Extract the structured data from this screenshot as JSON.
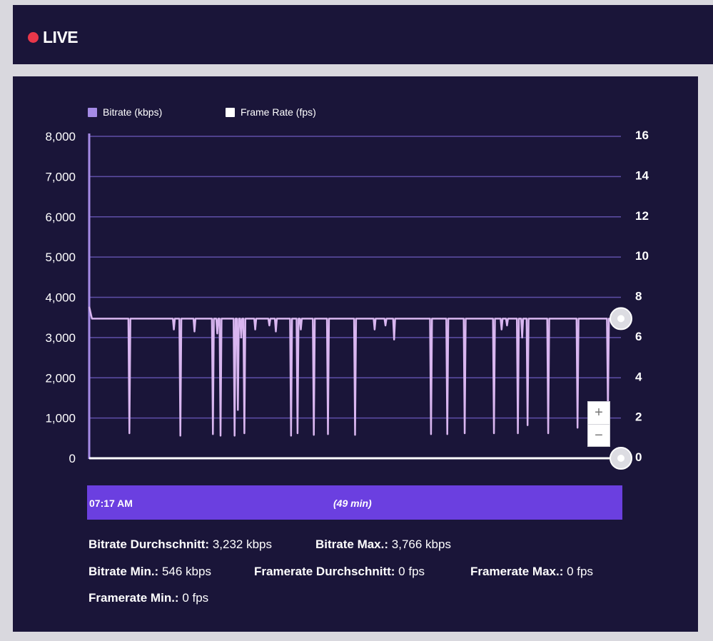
{
  "header": {
    "live_label": "LIVE",
    "live_color": "#e8374a"
  },
  "legend": [
    {
      "label": "Bitrate (kbps)",
      "color": "#a58be6"
    },
    {
      "label": "Frame Rate (fps)",
      "color": "#ffffff"
    }
  ],
  "chart_data": {
    "type": "line",
    "title": "",
    "y_left": {
      "min": 0,
      "max": 8000,
      "ticks": [
        "8,000",
        "7,000",
        "6,000",
        "5,000",
        "4,000",
        "3,000",
        "2,000",
        "1,000",
        "0"
      ]
    },
    "y_right": {
      "min": 0,
      "max": 16,
      "ticks": [
        "16",
        "14",
        "12",
        "10",
        "8",
        "6",
        "4",
        "2",
        "0"
      ]
    },
    "grid": true,
    "legend_placement": "top-left",
    "x_range_minutes": [
      0,
      49
    ],
    "series": [
      {
        "name": "Bitrate (kbps)",
        "axis": "left",
        "color": "#d9b6f0",
        "baseline": 3470,
        "start_peak": 3766,
        "dips": [
          {
            "t": 3.7,
            "v": 620
          },
          {
            "t": 7.8,
            "v": 3200
          },
          {
            "t": 8.4,
            "v": 560
          },
          {
            "t": 9.7,
            "v": 3150
          },
          {
            "t": 11.4,
            "v": 600
          },
          {
            "t": 11.8,
            "v": 3100
          },
          {
            "t": 12.1,
            "v": 560
          },
          {
            "t": 13.4,
            "v": 560
          },
          {
            "t": 13.7,
            "v": 1200
          },
          {
            "t": 14.0,
            "v": 3000
          },
          {
            "t": 14.3,
            "v": 620
          },
          {
            "t": 15.3,
            "v": 3200
          },
          {
            "t": 16.6,
            "v": 3300
          },
          {
            "t": 17.2,
            "v": 3150
          },
          {
            "t": 18.6,
            "v": 560
          },
          {
            "t": 19.2,
            "v": 620
          },
          {
            "t": 19.5,
            "v": 3200
          },
          {
            "t": 20.7,
            "v": 580
          },
          {
            "t": 22.0,
            "v": 600
          },
          {
            "t": 24.5,
            "v": 580
          },
          {
            "t": 26.3,
            "v": 3200
          },
          {
            "t": 27.3,
            "v": 3300
          },
          {
            "t": 28.1,
            "v": 2950
          },
          {
            "t": 31.5,
            "v": 600
          },
          {
            "t": 33.0,
            "v": 600
          },
          {
            "t": 34.6,
            "v": 620
          },
          {
            "t": 37.3,
            "v": 620
          },
          {
            "t": 38.0,
            "v": 3200
          },
          {
            "t": 38.5,
            "v": 3300
          },
          {
            "t": 39.5,
            "v": 620
          },
          {
            "t": 39.9,
            "v": 3000
          },
          {
            "t": 40.4,
            "v": 820
          },
          {
            "t": 42.3,
            "v": 620
          },
          {
            "t": 45.0,
            "v": 760
          },
          {
            "t": 47.8,
            "v": 1200
          }
        ]
      },
      {
        "name": "Frame Rate (fps)",
        "axis": "right",
        "color": "#ffffff",
        "values": [
          0
        ]
      }
    ]
  },
  "zoom": {
    "in_label": "+",
    "out_label": "−"
  },
  "timeline": {
    "start": "07:17 AM",
    "duration": "(49 min)",
    "color": "#6b3fe0"
  },
  "stats": [
    {
      "key": "Bitrate Durchschnitt:",
      "value": "3,232 kbps"
    },
    {
      "key": "Bitrate Max.:",
      "value": "3,766 kbps"
    },
    {
      "key": "Bitrate Min.:",
      "value": "546 kbps"
    },
    {
      "key": "Framerate Durchschnitt:",
      "value": "0 fps"
    },
    {
      "key": "Framerate Max.:",
      "value": "0 fps"
    },
    {
      "key": "Framerate Min.:",
      "value": "0 fps"
    }
  ]
}
